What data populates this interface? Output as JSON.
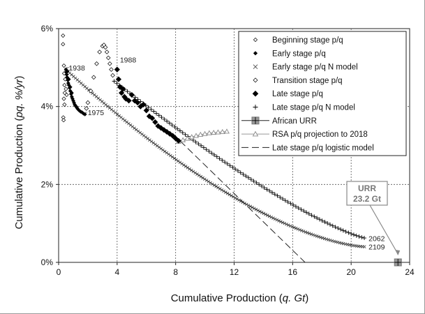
{
  "chart_data": {
    "type": "scatter",
    "xlabel": "Cumulative Production (",
    "xlabel_var": "q. Gt",
    "xlabel_end": ")",
    "ylabel": "Cumulative Production (",
    "ylabel_var": "pq. %/yr",
    "ylabel_end": ")",
    "xlim": [
      0,
      24
    ],
    "ylim": [
      0,
      6
    ],
    "x_ticks": [
      0,
      4,
      8,
      12,
      16,
      20,
      24
    ],
    "y_ticks": [
      0,
      2,
      4,
      6
    ],
    "y_tick_labels": [
      "0%",
      "2%",
      "4%",
      "6%"
    ],
    "grid": true,
    "legend_position": "top-right",
    "legend": [
      "Beginning stage p/q",
      "Early stage p/q",
      "Early stage p/q N model",
      "Transition stage p/q",
      "Late stage p/q",
      "Late stage p/q N model",
      "African URR",
      "RSA p/q projection to 2018",
      "Late stage p/q logistic model"
    ],
    "annotations": [
      {
        "text": "1938",
        "x": 0.5,
        "y": 5.0
      },
      {
        "text": "1988",
        "x": 4.0,
        "y": 5.2
      },
      {
        "text": "1975",
        "x": 1.8,
        "y": 3.85
      },
      {
        "text": "2062",
        "x": 21.0,
        "y": 0.62
      },
      {
        "text": "2109",
        "x": 21.0,
        "y": 0.4
      }
    ],
    "urr_label": [
      "URR",
      "23.2 Gt"
    ],
    "series": {
      "beginning": [
        [
          0.3,
          5.82
        ],
        [
          0.3,
          5.6
        ],
        [
          0.32,
          3.72
        ],
        [
          0.34,
          3.65
        ],
        [
          0.36,
          5.05
        ],
        [
          0.38,
          4.85
        ],
        [
          0.4,
          4.55
        ],
        [
          0.42,
          4.35
        ],
        [
          0.36,
          4.2
        ],
        [
          0.4,
          4.05
        ],
        [
          0.45,
          4.7
        ],
        [
          0.5,
          4.45
        ],
        [
          0.55,
          4.3
        ]
      ],
      "early": [
        [
          0.5,
          4.95
        ],
        [
          0.52,
          4.88
        ],
        [
          0.55,
          4.82
        ],
        [
          0.58,
          4.75
        ],
        [
          0.62,
          4.68
        ],
        [
          0.66,
          4.6
        ],
        [
          0.7,
          4.55
        ],
        [
          0.75,
          4.48
        ],
        [
          0.8,
          4.4
        ],
        [
          0.85,
          4.32
        ],
        [
          0.9,
          4.25
        ],
        [
          0.95,
          4.2
        ],
        [
          1.0,
          4.15
        ],
        [
          1.05,
          4.1
        ],
        [
          1.1,
          4.05
        ],
        [
          1.15,
          4.02
        ],
        [
          1.2,
          4.0
        ],
        [
          1.25,
          3.97
        ],
        [
          1.3,
          3.94
        ],
        [
          1.4,
          3.9
        ],
        [
          1.5,
          3.87
        ],
        [
          1.6,
          3.85
        ],
        [
          1.7,
          3.82
        ],
        [
          1.8,
          3.8
        ],
        [
          0.6,
          4.9
        ],
        [
          0.7,
          4.7
        ],
        [
          0.8,
          4.5
        ],
        [
          0.9,
          4.35
        ]
      ],
      "transition": [
        [
          1.9,
          3.95
        ],
        [
          2.0,
          4.1
        ],
        [
          2.2,
          4.4
        ],
        [
          2.4,
          4.75
        ],
        [
          2.6,
          5.1
        ],
        [
          2.8,
          5.4
        ],
        [
          3.0,
          5.55
        ],
        [
          3.1,
          5.58
        ],
        [
          3.2,
          5.52
        ],
        [
          3.3,
          5.4
        ],
        [
          3.4,
          5.25
        ],
        [
          3.5,
          5.1
        ],
        [
          3.6,
          4.95
        ],
        [
          3.7,
          4.8
        ]
      ],
      "late": [
        [
          4.0,
          4.95
        ],
        [
          4.1,
          4.7
        ],
        [
          4.2,
          4.5
        ],
        [
          4.3,
          4.35
        ],
        [
          4.4,
          4.45
        ],
        [
          4.5,
          4.25
        ],
        [
          4.6,
          4.2
        ],
        [
          4.8,
          4.15
        ],
        [
          5.0,
          4.3
        ],
        [
          5.2,
          4.15
        ],
        [
          5.4,
          4.1
        ],
        [
          5.6,
          4.0
        ],
        [
          5.8,
          4.05
        ],
        [
          6.0,
          3.9
        ],
        [
          6.2,
          3.75
        ],
        [
          6.4,
          3.7
        ],
        [
          6.6,
          3.6
        ],
        [
          6.8,
          3.5
        ],
        [
          7.0,
          3.45
        ],
        [
          7.2,
          3.4
        ],
        [
          7.4,
          3.35
        ],
        [
          7.6,
          3.3
        ],
        [
          7.8,
          3.25
        ],
        [
          8.0,
          3.18
        ],
        [
          8.2,
          3.12
        ]
      ],
      "early_N_model": {
        "x_start": 0.5,
        "x_end": 21.0,
        "step": 0.13,
        "y_start": 4.95,
        "y_end": 0.4
      },
      "late_N_model": {
        "x_start": 3.8,
        "x_end": 21.0,
        "step": 0.18,
        "y_start": 4.65,
        "y_end": 0.62
      },
      "rsa_projection": [
        [
          8.2,
          3.1
        ],
        [
          8.5,
          3.14
        ],
        [
          8.8,
          3.18
        ],
        [
          9.1,
          3.22
        ],
        [
          9.4,
          3.25
        ],
        [
          9.7,
          3.28
        ],
        [
          10.0,
          3.3
        ],
        [
          10.3,
          3.32
        ],
        [
          10.6,
          3.33
        ],
        [
          10.9,
          3.34
        ],
        [
          11.2,
          3.35
        ],
        [
          11.5,
          3.36
        ]
      ],
      "logistic_model": [
        [
          7.8,
          3.3
        ],
        [
          16.85,
          0
        ]
      ],
      "african_urr": [
        [
          23.2,
          0
        ]
      ]
    }
  }
}
